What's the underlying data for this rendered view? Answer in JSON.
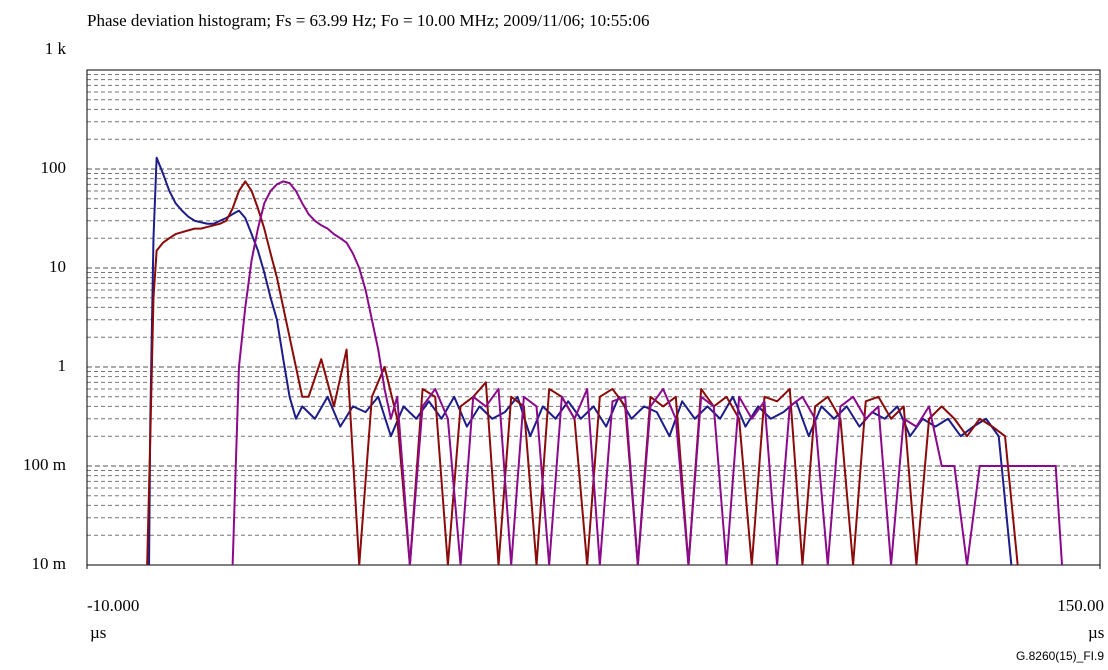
{
  "chart_data": {
    "type": "line",
    "title": "Phase deviation histogram; Fs = 63.99 Hz; Fo = 10.00 MHz; 2009/11/06; 10:55:06",
    "xlabel": "µs",
    "footnote": "G.8260(15)_FI.9",
    "log_y": true,
    "grid": true,
    "minor_grid": true,
    "xlim": [
      -10,
      150
    ],
    "xticks": [
      {
        "value": -10,
        "label": "-10.000"
      },
      {
        "value": 150,
        "label": "150.00"
      }
    ],
    "ylim": [
      0.01,
      1000
    ],
    "yticks": [
      {
        "value": 0.01,
        "label": "10 m"
      },
      {
        "value": 0.1,
        "label": "100 m"
      },
      1,
      10,
      100,
      {
        "value": 1000,
        "label": "1 k"
      }
    ],
    "series": [
      {
        "color": "#1c1c8a",
        "x": [
          -0.2,
          0,
          0.5,
          1,
          2,
          3,
          4,
          5,
          6,
          7,
          8,
          9,
          10,
          11,
          12,
          13,
          14,
          15,
          16,
          17,
          18,
          19,
          20,
          21,
          22,
          23,
          24,
          26,
          28,
          30,
          32,
          34,
          36,
          38,
          40,
          42,
          44,
          46,
          48,
          50,
          52,
          54,
          56,
          58,
          60,
          62,
          64,
          66,
          68,
          70,
          72,
          74,
          76,
          78,
          80,
          82,
          84,
          86,
          88,
          90,
          92,
          94,
          96,
          98,
          100,
          102,
          104,
          106,
          108,
          110,
          112,
          114,
          116,
          118,
          120,
          122,
          124,
          126,
          128,
          130,
          132,
          134,
          136
        ],
        "values": [
          0.01,
          0.3,
          20,
          130,
          90,
          60,
          45,
          38,
          33,
          30,
          29,
          28,
          28,
          30,
          32,
          35,
          38,
          32,
          22,
          15,
          9,
          5,
          3,
          1.2,
          0.5,
          0.3,
          0.4,
          0.3,
          0.5,
          0.25,
          0.4,
          0.35,
          0.5,
          0.2,
          0.4,
          0.3,
          0.45,
          0.3,
          0.5,
          0.25,
          0.4,
          0.3,
          0.35,
          0.5,
          0.2,
          0.4,
          0.3,
          0.45,
          0.3,
          0.4,
          0.25,
          0.5,
          0.3,
          0.4,
          0.35,
          0.2,
          0.45,
          0.3,
          0.4,
          0.3,
          0.5,
          0.25,
          0.4,
          0.3,
          0.35,
          0.45,
          0.2,
          0.4,
          0.3,
          0.4,
          0.25,
          0.35,
          0.3,
          0.4,
          0.2,
          0.3,
          0.25,
          0.3,
          0.2,
          0.25,
          0.3,
          0.2,
          0.01
        ]
      },
      {
        "color": "#8b0a0a",
        "x": [
          -0.5,
          0,
          0.5,
          1,
          2,
          3,
          4,
          5,
          6,
          7,
          8,
          9,
          10,
          11,
          12,
          13,
          14,
          15,
          16,
          17,
          18,
          19,
          20,
          21,
          22,
          23,
          24,
          25,
          27,
          29,
          31,
          33,
          35,
          37,
          39,
          41,
          43,
          45,
          47,
          49,
          51,
          53,
          55,
          57,
          59,
          61,
          63,
          65,
          67,
          69,
          71,
          73,
          75,
          77,
          79,
          81,
          83,
          85,
          87,
          89,
          91,
          93,
          95,
          97,
          99,
          101,
          103,
          105,
          107,
          109,
          111,
          113,
          115,
          117,
          119,
          121,
          123,
          125,
          127,
          129,
          131,
          133,
          135,
          137
        ],
        "values": [
          0.01,
          0.2,
          5,
          15,
          18,
          20,
          22,
          23,
          24,
          25,
          25,
          26,
          27,
          28,
          30,
          40,
          60,
          75,
          60,
          40,
          25,
          14,
          8,
          4,
          2,
          1,
          0.5,
          0.5,
          1.2,
          0.4,
          1.5,
          0.01,
          0.5,
          1.0,
          0.3,
          0.01,
          0.6,
          0.5,
          0.01,
          0.4,
          0.5,
          0.7,
          0.01,
          0.5,
          0.4,
          0.01,
          0.6,
          0.5,
          0.3,
          0.01,
          0.5,
          0.6,
          0.4,
          0.01,
          0.5,
          0.4,
          0.5,
          0.01,
          0.6,
          0.4,
          0.5,
          0.3,
          0.01,
          0.5,
          0.45,
          0.6,
          0.01,
          0.4,
          0.5,
          0.3,
          0.01,
          0.45,
          0.5,
          0.3,
          0.4,
          0.01,
          0.3,
          0.4,
          0.3,
          0.2,
          0.3,
          0.25,
          0.2,
          0.01
        ]
      },
      {
        "color": "#8b0a8b",
        "x": [
          13,
          13.5,
          14,
          15,
          16,
          17,
          18,
          19,
          20,
          21,
          22,
          23,
          24,
          25,
          26,
          27,
          28,
          29,
          30,
          31,
          32,
          33,
          34,
          35,
          36,
          37,
          38,
          39,
          41,
          43,
          45,
          47,
          49,
          51,
          53,
          55,
          57,
          59,
          61,
          63,
          65,
          67,
          69,
          71,
          73,
          75,
          77,
          79,
          81,
          83,
          85,
          87,
          89,
          91,
          93,
          95,
          97,
          99,
          101,
          103,
          105,
          107,
          109,
          111,
          113,
          115,
          117,
          119,
          121,
          123,
          125,
          127,
          129,
          131,
          133,
          135,
          137,
          139,
          141,
          143,
          144
        ],
        "values": [
          0.01,
          0.1,
          1,
          4,
          12,
          25,
          45,
          60,
          70,
          75,
          72,
          60,
          45,
          35,
          30,
          27,
          25,
          22,
          20,
          18,
          14,
          10,
          6,
          3,
          1.5,
          0.6,
          0.3,
          0.5,
          0.01,
          0.4,
          0.6,
          0.3,
          0.01,
          0.5,
          0.4,
          0.6,
          0.01,
          0.5,
          0.4,
          0.01,
          0.5,
          0.3,
          0.6,
          0.01,
          0.45,
          0.5,
          0.01,
          0.4,
          0.6,
          0.3,
          0.01,
          0.5,
          0.4,
          0.01,
          0.5,
          0.3,
          0.45,
          0.01,
          0.4,
          0.5,
          0.3,
          0.01,
          0.4,
          0.5,
          0.3,
          0.4,
          0.01,
          0.3,
          0.25,
          0.4,
          0.1,
          0.1,
          0.01,
          0.1,
          0.1,
          0.1,
          0.1,
          0.1,
          0.1,
          0.1,
          0.01
        ]
      }
    ]
  }
}
